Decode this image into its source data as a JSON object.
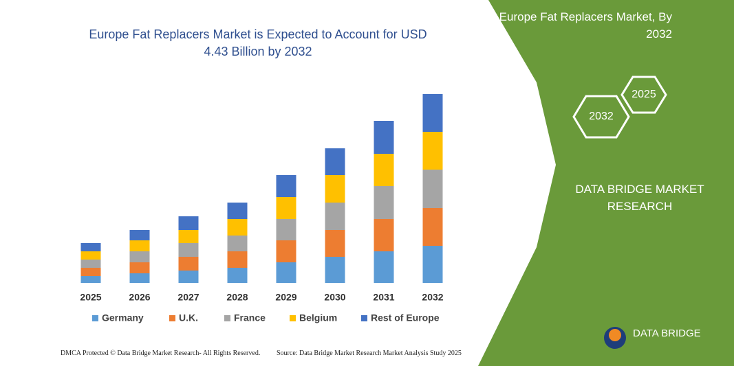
{
  "chart_data": {
    "type": "bar",
    "stacked": true,
    "title": "Europe Fat Replacers Market is Expected to Account for USD 4.43 Billion by 2032",
    "categories": [
      "2025",
      "2026",
      "2027",
      "2028",
      "2029",
      "2030",
      "2031",
      "2032"
    ],
    "series": [
      {
        "name": "Germany",
        "color": "#5b9bd5",
        "values": [
          10,
          14,
          18,
          22,
          30,
          38,
          46,
          54
        ]
      },
      {
        "name": "U.K.",
        "color": "#ed7d31",
        "values": [
          12,
          16,
          20,
          24,
          32,
          39,
          47,
          55
        ]
      },
      {
        "name": "France",
        "color": "#a5a5a5",
        "values": [
          12,
          16,
          20,
          23,
          31,
          40,
          48,
          56
        ]
      },
      {
        "name": "Belgium",
        "color": "#ffc000",
        "values": [
          12,
          16,
          19,
          24,
          32,
          40,
          47,
          55
        ]
      },
      {
        "name": "Rest of Europe",
        "color": "#4472c4",
        "values": [
          12,
          15,
          20,
          24,
          32,
          39,
          48,
          55
        ]
      }
    ]
  },
  "panel": {
    "title": "Europe Fat Replacers Market, By 2032",
    "hex_back": "2025",
    "hex_front": "2032",
    "brand": "DATA BRIDGE MARKET RESEARCH",
    "logo": "DATA BRIDGE"
  },
  "footer": {
    "left": "DMCA Protected © Data Bridge Market Research- All Rights Reserved.",
    "right": "Source: Data Bridge Market Research  Market Analysis Study 2025"
  }
}
